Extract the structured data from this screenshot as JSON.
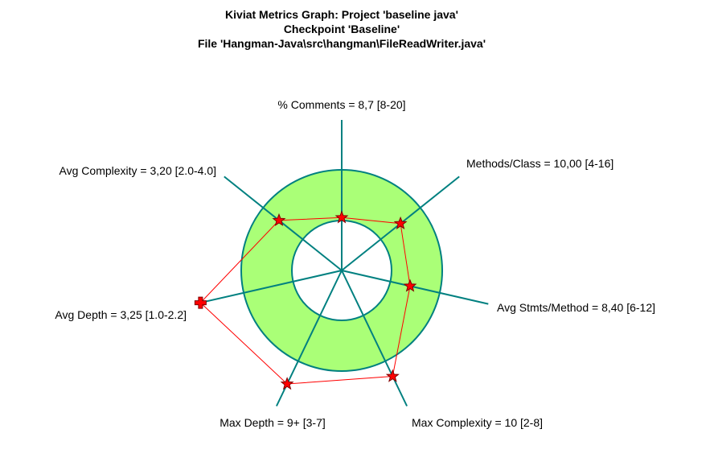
{
  "chart_data": {
    "type": "radar",
    "title": [
      "Kiviat Metrics Graph: Project 'baseline java'",
      "Checkpoint 'Baseline'",
      "File 'Hangman-Java\\src\\hangman\\FileReadWriter.java'"
    ],
    "axes": [
      {
        "name": "% Comments",
        "label": "% Comments = 8,7 [8-20]",
        "value": 8.7,
        "range": [
          8,
          20
        ],
        "marker": "star"
      },
      {
        "name": "Methods/Class",
        "label": "Methods/Class = 10,00 [4-16]",
        "value": 10.0,
        "range": [
          4,
          16
        ],
        "marker": "star"
      },
      {
        "name": "Avg Stmts/Method",
        "label": "Avg Stmts/Method = 8,40 [6-12]",
        "value": 8.4,
        "range": [
          6,
          12
        ],
        "marker": "star"
      },
      {
        "name": "Max Complexity",
        "label": "Max Complexity = 10 [2-8]",
        "value": 10,
        "range": [
          2,
          8
        ],
        "marker": "star"
      },
      {
        "name": "Max Depth",
        "label": "Max Depth = 9+ [3-7]",
        "value": 9,
        "range": [
          3,
          7
        ],
        "marker": "star"
      },
      {
        "name": "Avg Depth",
        "label": "Avg Depth = 3,25 [1.0-2.2]",
        "value": 3.25,
        "range": [
          1.0,
          2.2
        ],
        "marker": "cross"
      },
      {
        "name": "Avg Complexity",
        "label": "Avg Complexity = 3,20 [2.0-4.0]",
        "value": 3.2,
        "range": [
          2.0,
          4.0
        ],
        "marker": "star"
      }
    ],
    "colors": {
      "band": "#aaff77",
      "band_stroke": "#008080",
      "axes": "#008080",
      "polygon": "#ff0000",
      "marker_fill": "#ff0000",
      "marker_stroke": "#800000"
    }
  }
}
